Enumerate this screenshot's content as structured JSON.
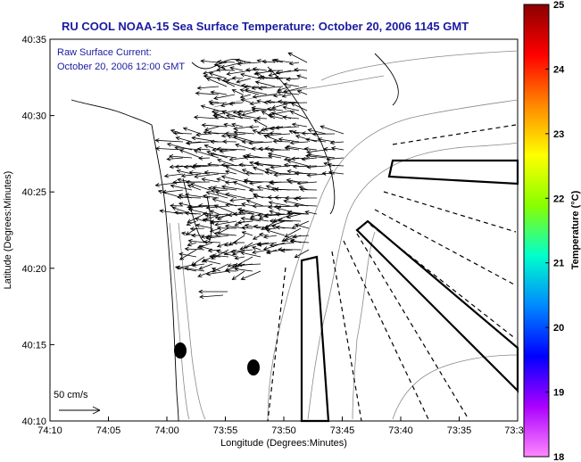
{
  "title": "RU COOL  NOAA-15  Sea Surface Temperature:  October 20, 2006 1145 GMT",
  "annotation": {
    "line1": "Raw Surface Current:",
    "line2": "October 20, 2006 12:00 GMT"
  },
  "scale_label": "50 cm/s",
  "x_axis": {
    "label": "Longitude (Degrees:Minutes)",
    "ticks": [
      "74:10",
      "74:05",
      "74:00",
      "73:55",
      "73:50",
      "73:45",
      "73:40",
      "73:35",
      "73:3"
    ]
  },
  "y_axis": {
    "label": "Latitude (Degrees:Minutes)",
    "ticks": [
      "40:35",
      "40:30",
      "40:25",
      "40:20",
      "40:15",
      "40:10"
    ]
  },
  "colorbar": {
    "label": "Temperature (°C)",
    "ticks": [
      "25",
      "24",
      "23",
      "22",
      "21",
      "20",
      "19",
      "18"
    ],
    "colors": [
      "#8b0000",
      "#ff0000",
      "#ff8800",
      "#ffff00",
      "#88ff00",
      "#00ffcc",
      "#0088ff",
      "#0000ff",
      "#aa00ff",
      "#ff88ff"
    ]
  }
}
